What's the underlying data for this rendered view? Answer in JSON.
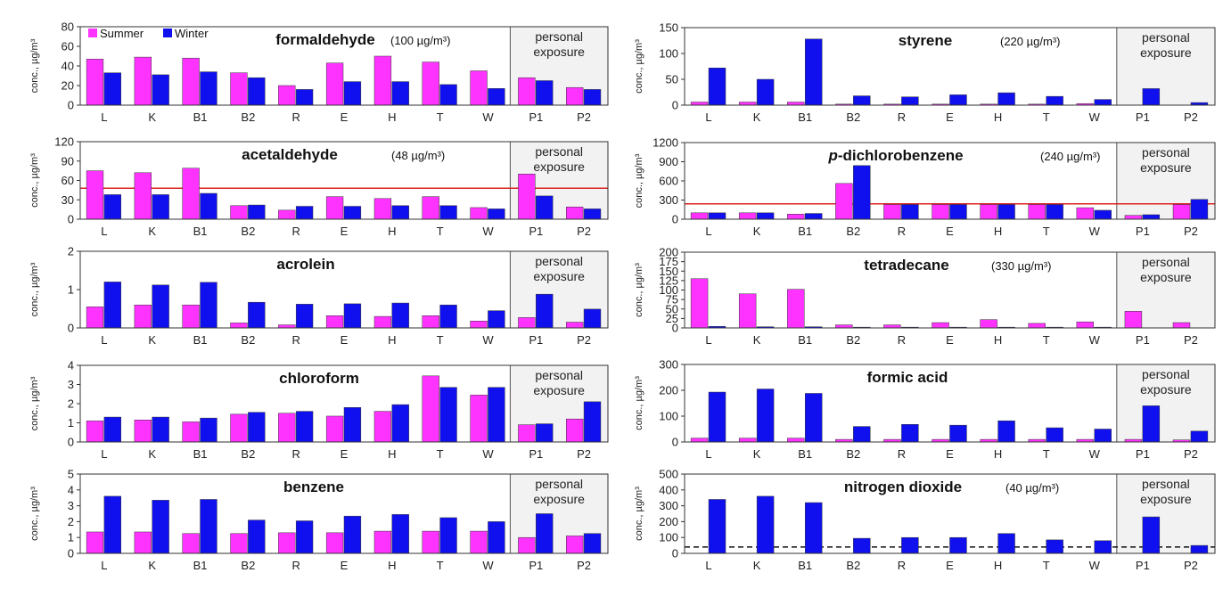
{
  "legend": {
    "items": [
      {
        "label": "Summer",
        "color": "#ff33ff"
      },
      {
        "label": "Winter",
        "color": "#1010ee"
      }
    ]
  },
  "colors": {
    "summer": "#ff33ff",
    "winter": "#1010ee",
    "guideline": "#dd2222",
    "personal_bg": "#f2f2f2"
  },
  "personal_label": [
    "personal",
    "exposure"
  ],
  "ylabel": "conc., µg/m³",
  "chart_data": [
    {
      "type": "bar",
      "title": "formaldehyde",
      "guideline_text": "(100 µg/m³)",
      "ylabel": "conc., µg/m³",
      "categories": [
        "L",
        "K",
        "B1",
        "B2",
        "R",
        "E",
        "H",
        "T",
        "W",
        "P1",
        "P2"
      ],
      "series": [
        {
          "name": "Summer",
          "values": [
            47,
            49,
            48,
            33,
            20,
            43,
            50,
            44,
            35,
            28,
            18
          ]
        },
        {
          "name": "Winter",
          "values": [
            33,
            31,
            34,
            28,
            16,
            24,
            24,
            21,
            17,
            25,
            16
          ]
        }
      ],
      "ylim": [
        0,
        80
      ],
      "yticks": [
        0,
        20,
        40,
        60,
        80
      ],
      "personal_from": "P1"
    },
    {
      "type": "bar",
      "title": "styrene",
      "guideline_text": "(220 µg/m³)",
      "ylabel": "conc., µg/m³",
      "categories": [
        "L",
        "K",
        "B1",
        "B2",
        "R",
        "E",
        "H",
        "T",
        "W",
        "P1",
        "P2"
      ],
      "series": [
        {
          "name": "Summer",
          "values": [
            6,
            6,
            6,
            2,
            2,
            2,
            2,
            2,
            3,
            0,
            0
          ]
        },
        {
          "name": "Winter",
          "values": [
            72,
            50,
            128,
            18,
            16,
            20,
            24,
            17,
            11,
            32,
            5
          ]
        }
      ],
      "ylim": [
        0,
        150
      ],
      "yticks": [
        0,
        50,
        100,
        150
      ],
      "personal_from": "P1"
    },
    {
      "type": "bar",
      "title": "acetaldehyde",
      "guideline_text": "(48 µg/m³)",
      "ylabel": "conc., µg/m³",
      "categories": [
        "L",
        "K",
        "B1",
        "B2",
        "R",
        "E",
        "H",
        "T",
        "W",
        "P1",
        "P2"
      ],
      "series": [
        {
          "name": "Summer",
          "values": [
            75,
            72,
            79,
            21,
            14,
            35,
            32,
            35,
            18,
            70,
            19
          ]
        },
        {
          "name": "Winter",
          "values": [
            38,
            38,
            40,
            22,
            20,
            20,
            21,
            21,
            16,
            36,
            16
          ]
        }
      ],
      "ylim": [
        0,
        120
      ],
      "yticks": [
        0,
        30,
        60,
        90,
        120
      ],
      "guideline": 48,
      "guideline_style": "solid",
      "personal_from": "P1"
    },
    {
      "type": "bar",
      "title": "p-dichlorobenzene",
      "title_prefix": "p",
      "title_rest": "-dichlorobenzene",
      "guideline_text": "(240 µg/m³)",
      "ylabel": "conc., µg/m³",
      "categories": [
        "L",
        "K",
        "B1",
        "B2",
        "R",
        "E",
        "H",
        "T",
        "W",
        "P1",
        "P2"
      ],
      "series": [
        {
          "name": "Summer",
          "values": [
            100,
            100,
            80,
            560,
            230,
            230,
            230,
            230,
            180,
            60,
            230
          ]
        },
        {
          "name": "Winter",
          "values": [
            100,
            100,
            90,
            840,
            230,
            230,
            230,
            230,
            140,
            70,
            310
          ]
        }
      ],
      "ylim": [
        0,
        1200
      ],
      "yticks": [
        0,
        300,
        600,
        900,
        1200
      ],
      "guideline": 240,
      "guideline_style": "solid",
      "personal_from": "P1"
    },
    {
      "type": "bar",
      "title": "acrolein",
      "guideline_text": "",
      "ylabel": "conc., µg/m³",
      "categories": [
        "L",
        "K",
        "B1",
        "B2",
        "R",
        "E",
        "H",
        "T",
        "W",
        "P1",
        "P2"
      ],
      "series": [
        {
          "name": "Summer",
          "values": [
            0.55,
            0.6,
            0.6,
            0.13,
            0.08,
            0.32,
            0.3,
            0.32,
            0.18,
            0.27,
            0.15
          ]
        },
        {
          "name": "Winter",
          "values": [
            1.2,
            1.12,
            1.19,
            0.67,
            0.62,
            0.63,
            0.65,
            0.6,
            0.45,
            0.88,
            0.49
          ]
        }
      ],
      "ylim": [
        0,
        2
      ],
      "yticks": [
        0,
        1,
        2
      ],
      "personal_from": "P1"
    },
    {
      "type": "bar",
      "title": "tetradecane",
      "guideline_text": "(330 µg/m³)",
      "ylabel": "conc., µg/m³",
      "categories": [
        "L",
        "K",
        "B1",
        "B2",
        "R",
        "E",
        "H",
        "T",
        "W",
        "P1",
        "P2"
      ],
      "series": [
        {
          "name": "Summer",
          "values": [
            130,
            90,
            102,
            8,
            8,
            14,
            22,
            12,
            16,
            44,
            14
          ]
        },
        {
          "name": "Winter",
          "values": [
            4,
            3,
            3,
            2,
            2,
            2,
            2,
            2,
            2,
            0,
            0
          ]
        }
      ],
      "ylim": [
        0,
        200
      ],
      "yticks": [
        0,
        25,
        50,
        75,
        100,
        125,
        150,
        175,
        200
      ],
      "personal_from": "P1"
    },
    {
      "type": "bar",
      "title": "chloroform",
      "guideline_text": "",
      "ylabel": "conc., µg/m³",
      "categories": [
        "L",
        "K",
        "B1",
        "B2",
        "R",
        "E",
        "H",
        "T",
        "W",
        "P1",
        "P2"
      ],
      "series": [
        {
          "name": "Summer",
          "values": [
            1.1,
            1.15,
            1.05,
            1.45,
            1.5,
            1.35,
            1.6,
            3.45,
            2.45,
            0.9,
            1.2
          ]
        },
        {
          "name": "Winter",
          "values": [
            1.3,
            1.3,
            1.25,
            1.55,
            1.6,
            1.8,
            1.95,
            2.85,
            2.85,
            0.95,
            2.1
          ]
        }
      ],
      "ylim": [
        0,
        4
      ],
      "yticks": [
        0,
        1,
        2,
        3,
        4
      ],
      "personal_from": "P1"
    },
    {
      "type": "bar",
      "title": "formic acid",
      "guideline_text": "",
      "ylabel": "conc., µg/m³",
      "categories": [
        "L",
        "K",
        "B1",
        "B2",
        "R",
        "E",
        "H",
        "T",
        "W",
        "P1",
        "P2"
      ],
      "series": [
        {
          "name": "Summer",
          "values": [
            15,
            15,
            15,
            10,
            10,
            10,
            10,
            10,
            10,
            10,
            8
          ]
        },
        {
          "name": "Winter",
          "values": [
            193,
            205,
            188,
            60,
            68,
            65,
            82,
            55,
            50,
            140,
            42
          ]
        }
      ],
      "ylim": [
        0,
        300
      ],
      "yticks": [
        0,
        100,
        200,
        300
      ],
      "personal_from": "P1"
    },
    {
      "type": "bar",
      "title": "benzene",
      "guideline_text": "",
      "ylabel": "conc., µg/m³",
      "categories": [
        "L",
        "K",
        "B1",
        "B2",
        "R",
        "E",
        "H",
        "T",
        "W",
        "P1",
        "P2"
      ],
      "series": [
        {
          "name": "Summer",
          "values": [
            1.35,
            1.35,
            1.25,
            1.25,
            1.3,
            1.3,
            1.4,
            1.4,
            1.4,
            1.0,
            1.1
          ]
        },
        {
          "name": "Winter",
          "values": [
            3.6,
            3.35,
            3.4,
            2.1,
            2.05,
            2.35,
            2.45,
            2.25,
            2.0,
            2.5,
            1.25
          ]
        }
      ],
      "ylim": [
        0,
        5
      ],
      "yticks": [
        0,
        1,
        2,
        3,
        4,
        5
      ],
      "personal_from": "P1"
    },
    {
      "type": "bar",
      "title": "nitrogen dioxide",
      "guideline_text": "(40 µg/m³)",
      "ylabel": "conc., µg/m³",
      "categories": [
        "L",
        "K",
        "B1",
        "B2",
        "R",
        "E",
        "H",
        "T",
        "W",
        "P1",
        "P2"
      ],
      "series": [
        {
          "name": "Summer",
          "values": [
            0,
            0,
            0,
            0,
            0,
            0,
            0,
            0,
            0,
            0,
            0
          ]
        },
        {
          "name": "Winter",
          "values": [
            340,
            360,
            320,
            95,
            100,
            100,
            125,
            85,
            80,
            230,
            50
          ]
        }
      ],
      "ylim": [
        0,
        500
      ],
      "yticks": [
        0,
        100,
        200,
        300,
        400,
        500
      ],
      "guideline": 40,
      "guideline_style": "dashed",
      "personal_from": "P1"
    }
  ]
}
